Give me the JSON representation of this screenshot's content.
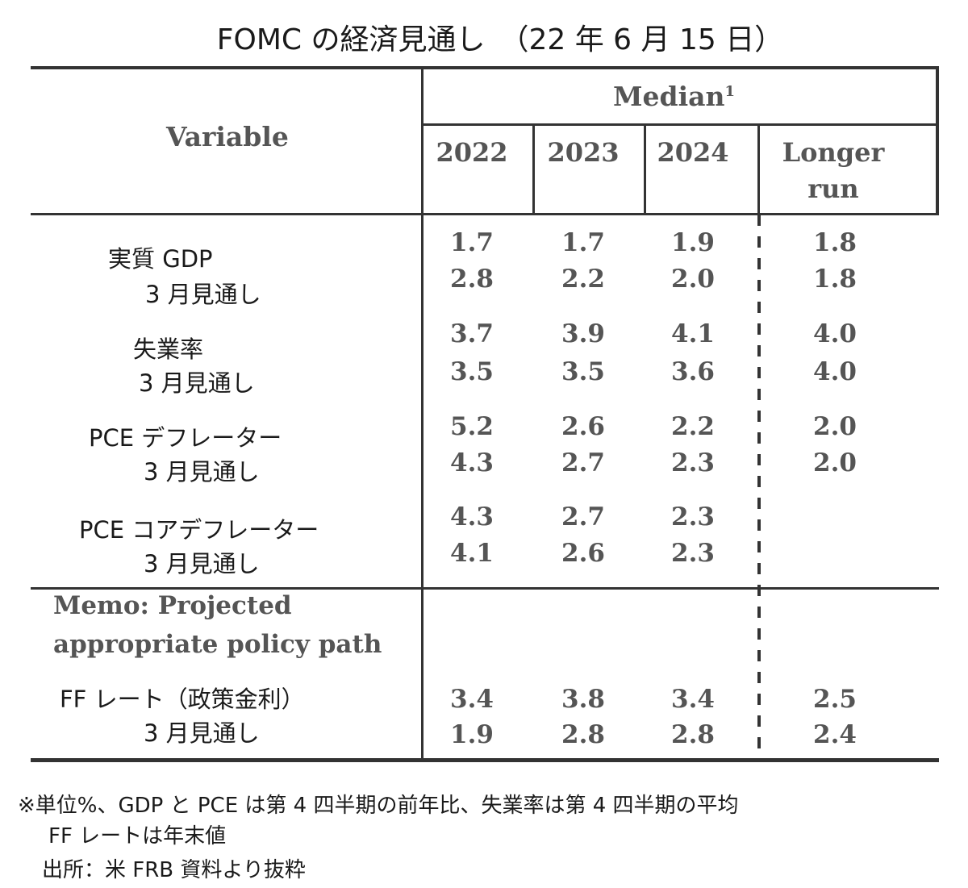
{
  "title": "FOMC の経済見通し　（22 年 6 月 15 日）",
  "header": {
    "variable": "Variable",
    "median": "Median",
    "median_sup": "1",
    "years": [
      "2022",
      "2023",
      "2024"
    ],
    "longer_run": [
      "Longer",
      "run"
    ]
  },
  "rows": [
    {
      "label": "実質 GDP",
      "sub": "3 月見通し",
      "current": [
        "1.7",
        "1.7",
        "1.9",
        "1.8"
      ],
      "previous": [
        "2.8",
        "2.2",
        "2.0",
        "1.8"
      ]
    },
    {
      "label": "失業率",
      "sub": "3 月見通し",
      "current": [
        "3.7",
        "3.9",
        "4.1",
        "4.0"
      ],
      "previous": [
        "3.5",
        "3.5",
        "3.6",
        "4.0"
      ]
    },
    {
      "label": "PCE デフレーター",
      "sub": "3 月見通し",
      "current": [
        "5.2",
        "2.6",
        "2.2",
        "2.0"
      ],
      "previous": [
        "4.3",
        "2.7",
        "2.3",
        "2.0"
      ]
    },
    {
      "label": "PCE コアデフレーター",
      "sub": "3 月見通し",
      "current": [
        "4.3",
        "2.7",
        "2.3",
        ""
      ],
      "previous": [
        "4.1",
        "2.6",
        "2.3",
        ""
      ]
    }
  ],
  "memo": {
    "line1": "Memo: Projected",
    "line2": "appropriate policy path",
    "label": "FF レート（政策金利）",
    "sub": "3 月見通し",
    "current": [
      "3.4",
      "3.8",
      "3.4",
      "2.5"
    ],
    "previous": [
      "1.9",
      "2.8",
      "2.8",
      "2.4"
    ]
  },
  "notes": [
    "※単位%、GDP と PCE は第 4 四半期の前年比、失業率は第 4 四半期の平均",
    "FF レートは年末値",
    "出所：米 FRB 資料より抜粋"
  ]
}
